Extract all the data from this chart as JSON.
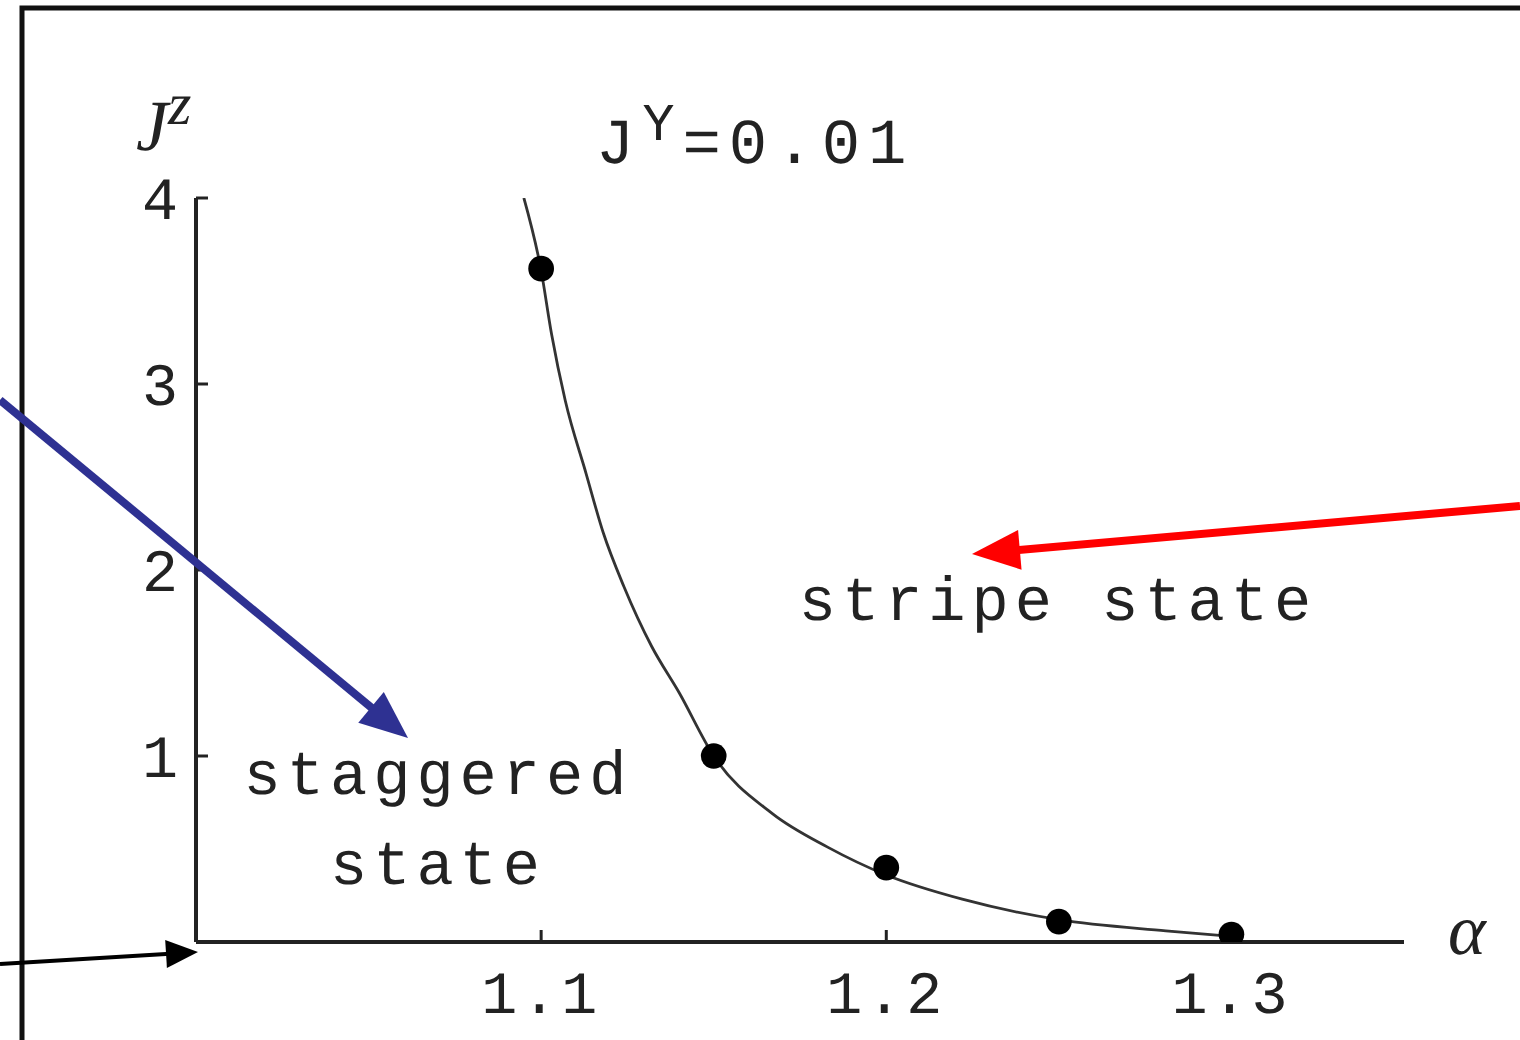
{
  "chart_data": {
    "type": "scatter",
    "title": "J$^{Y}$=0.01",
    "xlabel": "α",
    "ylabel": "J$^{z}$",
    "xlim": [
      1.0,
      1.35
    ],
    "xticks": [
      1.1,
      1.2,
      1.3
    ],
    "ylim": [
      0,
      4
    ],
    "yticks": [
      1,
      2,
      3,
      4
    ],
    "series": [
      {
        "type": "line",
        "color": "#333333",
        "marker": "none",
        "x": [
          1.095,
          1.1,
          1.103,
          1.107,
          1.113,
          1.118,
          1.124,
          1.132,
          1.14,
          1.15,
          1.167,
          1.183,
          1.2,
          1.222,
          1.25,
          1.281,
          1.3
        ],
        "values": [
          4.0,
          3.61,
          3.27,
          2.91,
          2.52,
          2.2,
          1.91,
          1.59,
          1.34,
          1.0,
          0.69,
          0.51,
          0.36,
          0.23,
          0.12,
          0.06,
          0.03
        ]
      },
      {
        "color": "#000000",
        "marker": "circle",
        "x": [
          1.1,
          1.15,
          1.2,
          1.25,
          1.3
        ],
        "values": [
          3.62,
          1.0,
          0.4,
          0.11,
          0.04
        ]
      }
    ],
    "annotations": [
      "stripe state",
      "staggered state"
    ]
  }
}
